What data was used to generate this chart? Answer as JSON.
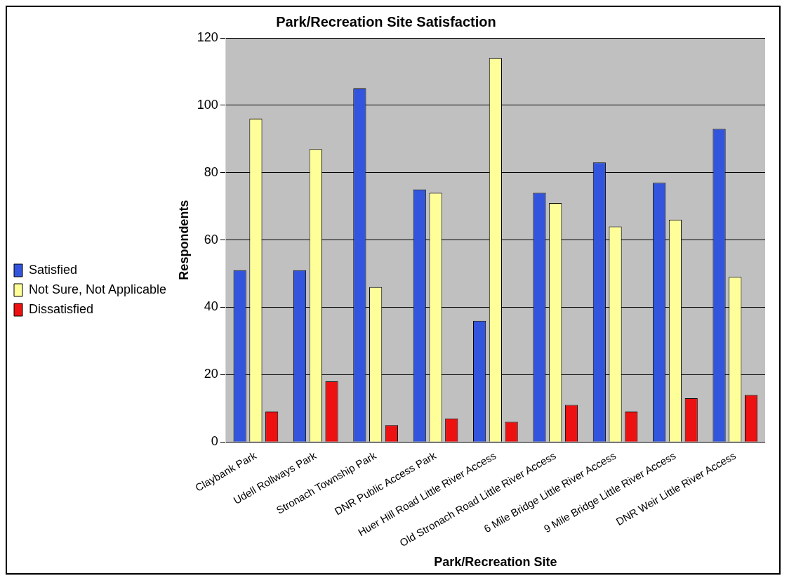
{
  "chart_data": {
    "type": "bar",
    "title": "Park/Recreation Site Satisfaction",
    "xlabel": "Park/Recreation Site",
    "ylabel": "Respondents",
    "categories": [
      "Claybank Park",
      "Udell Rollways Park",
      "Stronach Township Park",
      "DNR Public Access Park",
      "Huer Hill Road Little River Access",
      "Old Stronach Road Little River Access",
      "6 Mile Bridge Little River Access",
      "9 Mile Bridge Little River Access",
      "DNR Weir Little River Access"
    ],
    "series": [
      {
        "name": "Satisfied",
        "color": "#3355dd",
        "values": [
          51,
          51,
          105,
          75,
          36,
          74,
          83,
          77,
          93
        ]
      },
      {
        "name": "Not Sure, Not Applicable",
        "color": "#ffff99",
        "values": [
          96,
          87,
          46,
          74,
          114,
          71,
          64,
          66,
          49
        ]
      },
      {
        "name": "Dissatisfied",
        "color": "#ee1111",
        "values": [
          9,
          18,
          5,
          7,
          6,
          11,
          9,
          13,
          14
        ]
      }
    ],
    "ylim": [
      0,
      120
    ],
    "yticks": [
      0,
      20,
      40,
      60,
      80,
      100,
      120
    ],
    "grid": "y",
    "legend": "left"
  }
}
